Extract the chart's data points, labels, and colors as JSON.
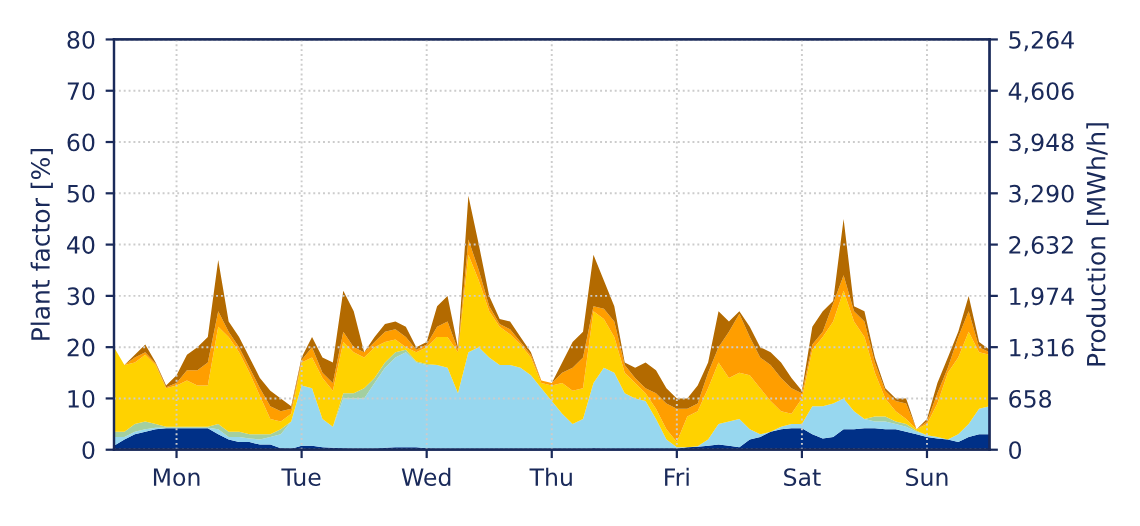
{
  "chart_data": {
    "type": "area",
    "stacked": true,
    "ylabel": "Plant factor [%]",
    "y2label": "Production [MWh/h]",
    "categories": [
      null,
      null,
      null,
      null,
      null,
      null,
      "Mon",
      null,
      null,
      null,
      null,
      null,
      null,
      null,
      null,
      null,
      null,
      null,
      "Tue",
      null,
      null,
      null,
      null,
      null,
      null,
      null,
      null,
      null,
      null,
      null,
      "Wed",
      null,
      null,
      null,
      null,
      null,
      null,
      null,
      null,
      null,
      null,
      null,
      "Thu",
      null,
      null,
      null,
      null,
      null,
      null,
      null,
      null,
      null,
      null,
      null,
      "Fri",
      null,
      null,
      null,
      null,
      null,
      null,
      null,
      null,
      null,
      null,
      null,
      "Sat",
      null,
      null,
      null,
      null,
      null,
      null,
      null,
      null,
      null,
      null,
      null,
      "Sun",
      null,
      null,
      null,
      null,
      null,
      null
    ],
    "series": [
      {
        "color": "#003087",
        "values": [
          0.8,
          2,
          3,
          3.5,
          4,
          4.2,
          4.2,
          4.2,
          4.2,
          4.2,
          3,
          2,
          1.5,
          1.5,
          1,
          1,
          0.3,
          0.2,
          0.8,
          0.8,
          0.5,
          0.4,
          0.3,
          0.2,
          0.2,
          0.2,
          0.4,
          0.5,
          0.5,
          0.5,
          0.3,
          0.2,
          0.2,
          0.1,
          0.1,
          0.1,
          0,
          0,
          0,
          0,
          0,
          0,
          0,
          0,
          0,
          0,
          0.3,
          0.2,
          0.1,
          0,
          0,
          0,
          0,
          0,
          0.2,
          0.5,
          0.6,
          0.8,
          1,
          0.8,
          0.5,
          2,
          2.5,
          3.5,
          4,
          4.2,
          4.2,
          3,
          2.2,
          2.5,
          4,
          4,
          4.2,
          4.2,
          4,
          4,
          3.5,
          3,
          2.5,
          2.2,
          2,
          1.5,
          2.5,
          3,
          3
        ]
      },
      {
        "color": "#97d7ef",
        "values": [
          1.7,
          0.5,
          0.5,
          0.5,
          0.3,
          0.1,
          0.1,
          0.1,
          0.1,
          0.1,
          1,
          0.5,
          1,
          0.7,
          1,
          1.5,
          2.7,
          5.3,
          11.7,
          11.2,
          5.5,
          4.1,
          9.7,
          9.8,
          9.8,
          12.8,
          15.6,
          17.5,
          18.5,
          16.5,
          16.2,
          16.3,
          15.8,
          10.9,
          18.9,
          19.9,
          18,
          16.5,
          16.5,
          16,
          14.5,
          12,
          9.5,
          7,
          5,
          6,
          12.7,
          15.8,
          14.9,
          11,
          10,
          9.5,
          6,
          2,
          0.3,
          0,
          0.1,
          1.2,
          4,
          4.7,
          5.5,
          2,
          0.5,
          0,
          0.5,
          0.8,
          0.8,
          5.5,
          6.3,
          6.5,
          6,
          3.5,
          1.8,
          1.3,
          1.5,
          1,
          1,
          0.5,
          0.3,
          0.3,
          0,
          1.5,
          2.5,
          5,
          5.5
        ]
      },
      {
        "color": "#a3cfa0",
        "values": [
          1,
          1,
          1.5,
          1.5,
          0.7,
          0.2,
          0.2,
          0.2,
          0.2,
          0.2,
          1,
          1,
          1,
          0.8,
          1,
          0.5,
          1,
          0,
          0,
          0,
          0,
          0,
          1,
          1,
          2,
          1,
          1,
          1,
          0.5,
          0.2,
          0.2,
          0,
          0,
          0,
          0,
          0,
          0,
          0,
          0,
          0,
          0,
          0,
          0,
          0,
          0,
          0,
          0,
          0,
          0,
          0,
          0,
          0,
          0,
          0,
          0,
          0,
          0,
          0,
          0,
          0,
          0,
          0,
          0,
          0,
          0,
          0,
          0,
          0,
          0,
          0,
          0,
          0,
          0,
          1,
          1,
          0.5,
          0.5,
          0.2,
          0,
          0,
          0,
          0,
          0,
          0,
          0
        ]
      },
      {
        "color": "#ffd200",
        "values": [
          16.5,
          13,
          12,
          13,
          11.5,
          7.5,
          8,
          9,
          8,
          8,
          19,
          18.5,
          15.5,
          12,
          7.5,
          3,
          1.5,
          1.5,
          4.5,
          6,
          8,
          7,
          10,
          8,
          6,
          6,
          4,
          2.5,
          0.5,
          1.8,
          3.3,
          5.5,
          6,
          8,
          19,
          13,
          9,
          7.5,
          6,
          4.5,
          3.5,
          1,
          3,
          6,
          6.5,
          6,
          14,
          9.5,
          7,
          4,
          3,
          1.5,
          2,
          2,
          1,
          6,
          6.8,
          10,
          12,
          8.5,
          9,
          10.5,
          9,
          6,
          3,
          2,
          5,
          11,
          13.5,
          16,
          21,
          17.5,
          16,
          8.5,
          3.5,
          2,
          1,
          0.3,
          2.2,
          6.5,
          13,
          15,
          18,
          11,
          10
        ]
      },
      {
        "color": "#ff9e00",
        "values": [
          0,
          0,
          1,
          0.5,
          0.3,
          0.2,
          0.5,
          2,
          3,
          4.5,
          3,
          1,
          1,
          1,
          1.5,
          2.5,
          2,
          1,
          0.5,
          2,
          1,
          1.5,
          2,
          1,
          1,
          1,
          2,
          2,
          2,
          0.5,
          0.5,
          2,
          3,
          0.5,
          3,
          2,
          1,
          0.5,
          1,
          0.5,
          0.5,
          0.5,
          0.5,
          2,
          4.5,
          6,
          1,
          2,
          3,
          1.5,
          1,
          1,
          3,
          5,
          6.5,
          1.5,
          1.5,
          3,
          3,
          9,
          11.5,
          7.5,
          6,
          7,
          6.5,
          5,
          1,
          1,
          1,
          3.5,
          3,
          2,
          3,
          2,
          1.5,
          2,
          3,
          0,
          0.5,
          2,
          1,
          4,
          4,
          1,
          0.5
        ]
      },
      {
        "color": "#b36a00",
        "values": [
          0,
          0,
          0.5,
          1.5,
          0.2,
          0.3,
          1.5,
          3,
          4.5,
          5,
          10,
          2,
          2,
          2,
          2,
          3,
          2.5,
          0.5,
          0.5,
          2,
          3,
          4,
          8,
          7,
          0,
          1,
          1.5,
          1.5,
          2,
          0.5,
          0.5,
          4,
          5,
          0.5,
          8.5,
          5,
          2,
          1,
          1.5,
          1,
          0.5,
          0,
          0,
          2,
          5,
          5,
          10,
          5.5,
          3,
          0.5,
          2,
          5,
          4.5,
          3,
          2,
          2,
          3.5,
          2,
          7,
          2,
          0.5,
          2,
          2,
          2.5,
          3,
          2,
          0.5,
          3.5,
          4,
          0.5,
          11,
          1,
          2,
          1,
          0.5,
          0.5,
          1,
          0,
          0.5,
          2,
          2,
          1,
          3,
          1,
          0.5
        ]
      }
    ],
    "ylim": [
      0,
      80
    ],
    "yticks": [
      0,
      10,
      20,
      30,
      40,
      50,
      60,
      70,
      80
    ],
    "y2lim": [
      0,
      5264
    ],
    "y2ticks": [
      0,
      {
        "value": 658,
        "label": "658"
      },
      {
        "value": 1316,
        "label": "1,316"
      },
      {
        "value": 1974,
        "label": "1,974"
      },
      {
        "value": 2632,
        "label": "2,632"
      },
      {
        "value": 3290,
        "label": "3,290"
      },
      {
        "value": 3948,
        "label": "3,948"
      },
      {
        "value": 4606,
        "label": "4,606"
      },
      {
        "value": 5264,
        "label": "5,264"
      }
    ],
    "grid": true
  }
}
